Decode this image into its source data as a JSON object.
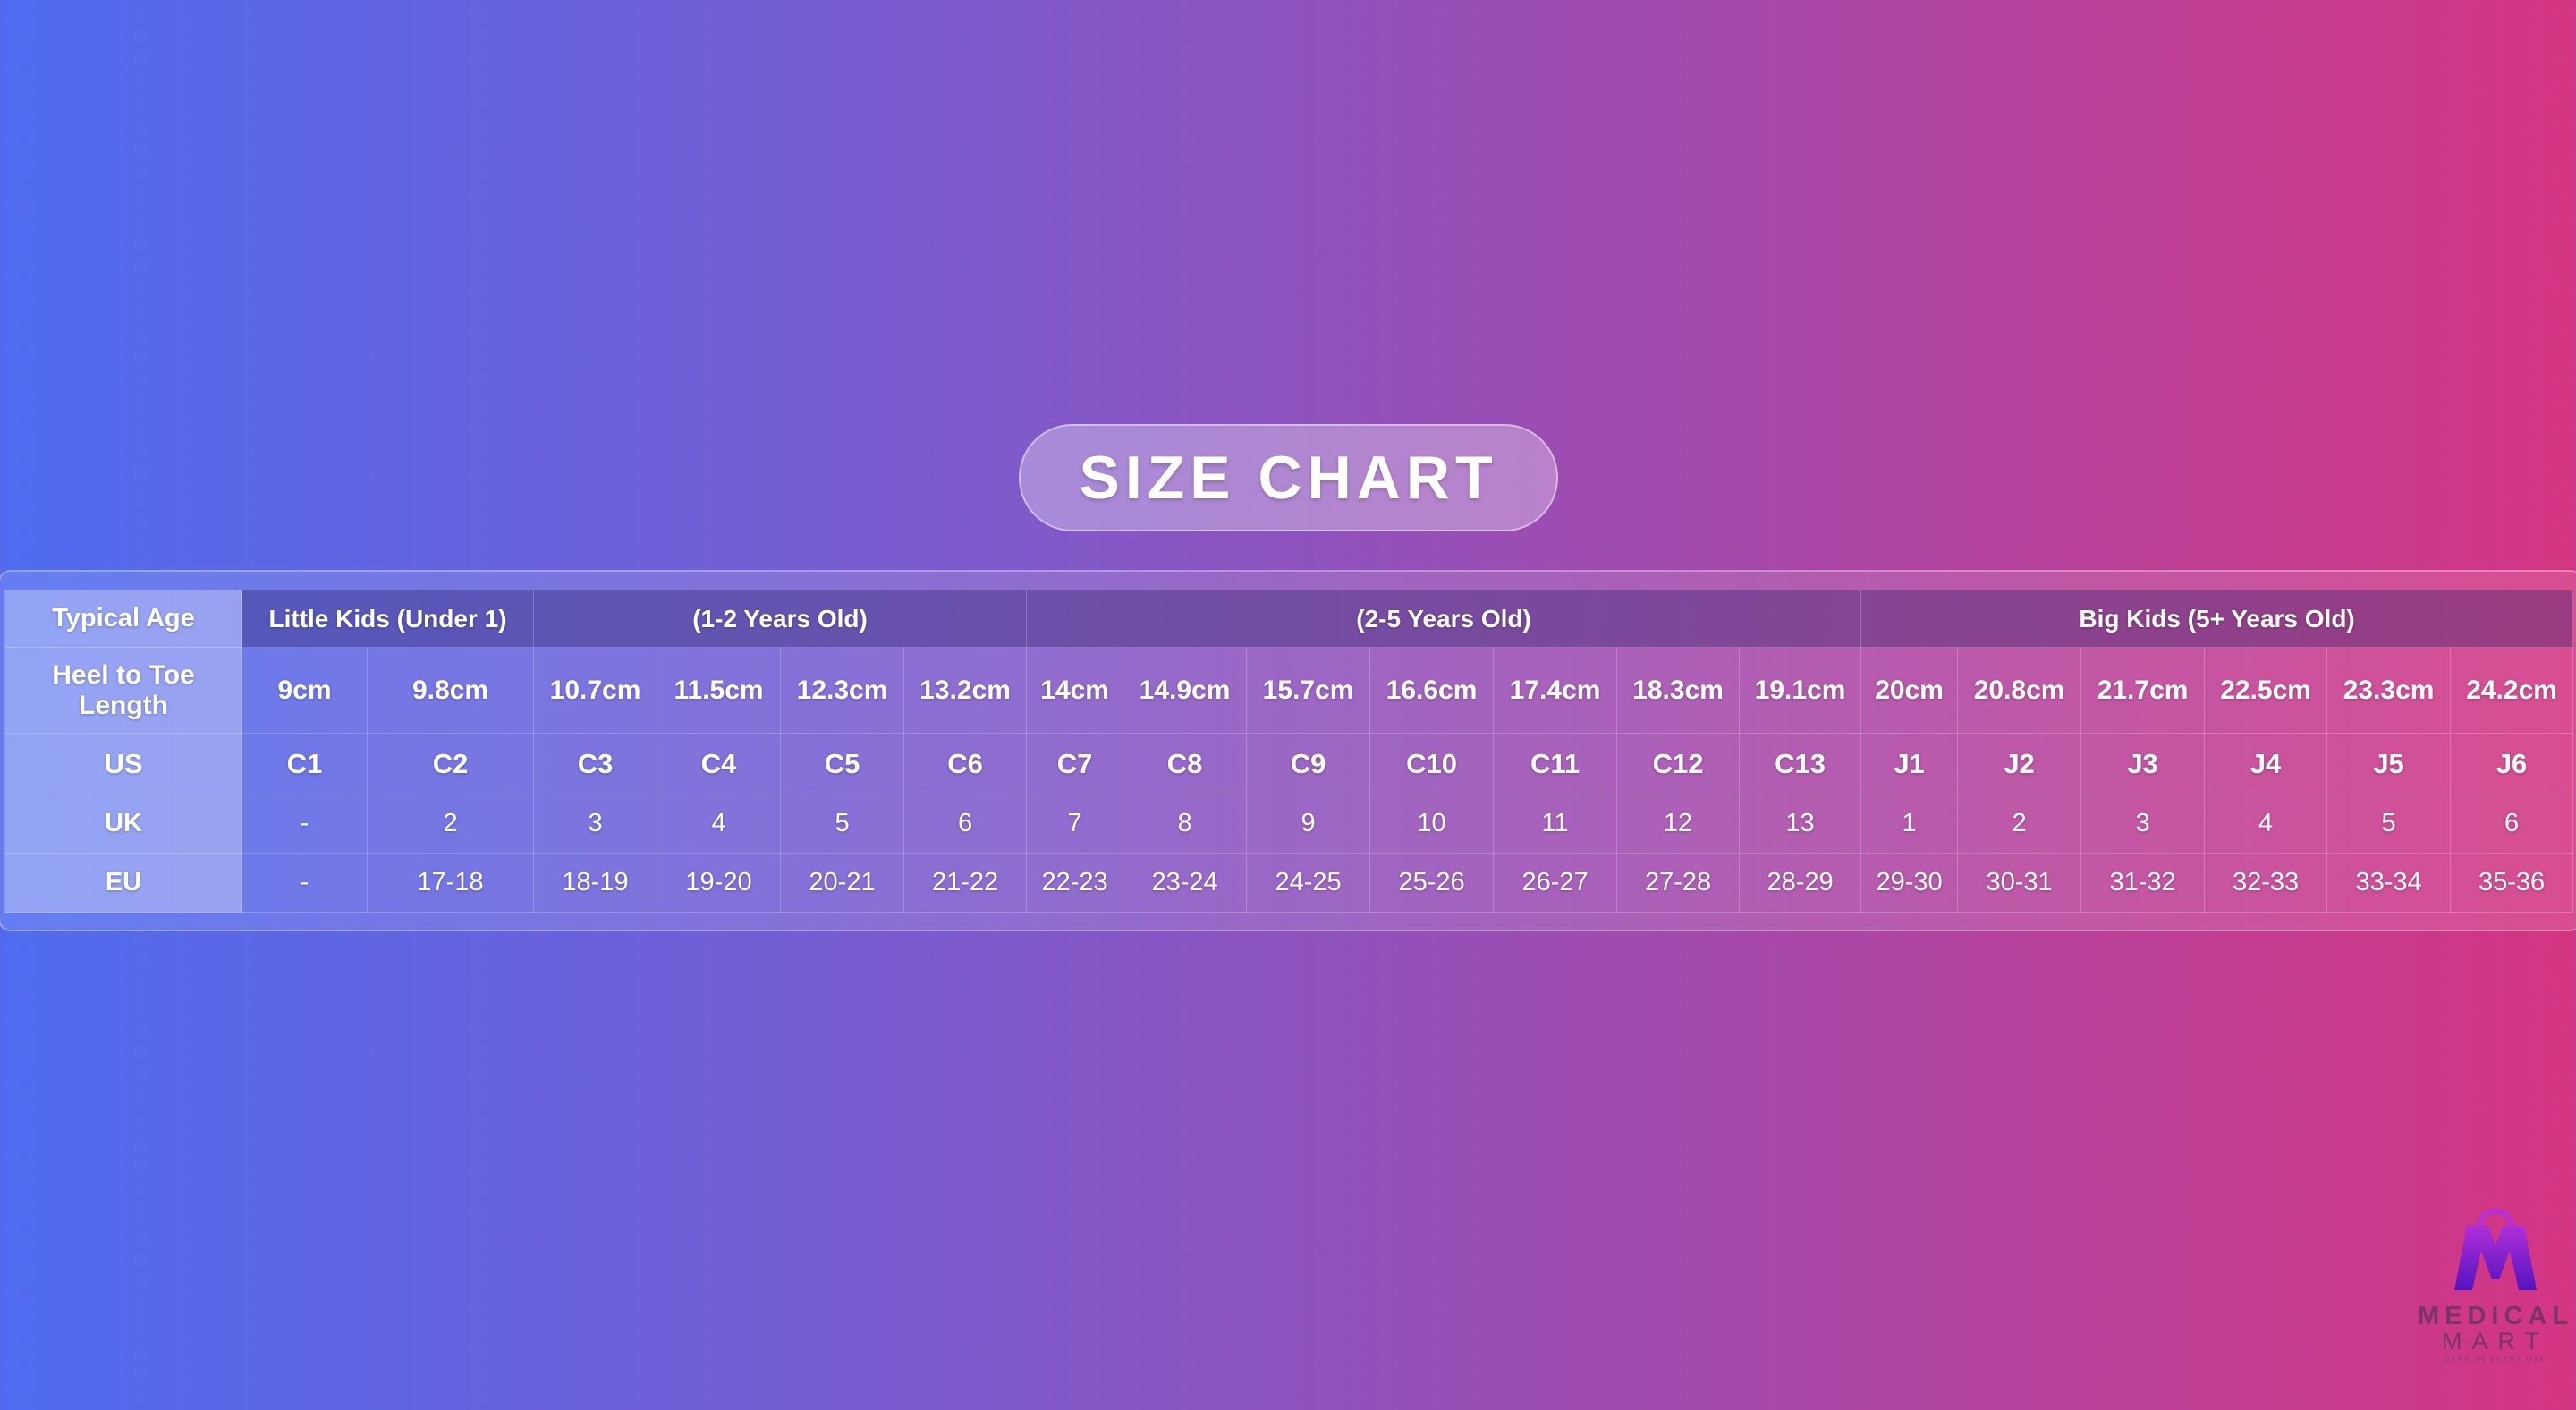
{
  "title": "SIZE CHART",
  "table": {
    "row_labels": {
      "age": "Typical Age",
      "length": "Heel to Toe Length",
      "us": "US",
      "uk": "UK",
      "eu": "EU"
    },
    "groups": [
      "Little Kids (Under 1)",
      "(1-2 Years Old)",
      "(2-5 Years Old)",
      "Big Kids (5+ Years Old)"
    ],
    "length": [
      "9cm",
      "9.8cm",
      "10.7cm",
      "11.5cm",
      "12.3cm",
      "13.2cm",
      "14cm",
      "14.9cm",
      "15.7cm",
      "16.6cm",
      "17.4cm",
      "18.3cm",
      "19.1cm",
      "20cm",
      "20.8cm",
      "21.7cm",
      "22.5cm",
      "23.3cm",
      "24.2cm"
    ],
    "us": [
      "C1",
      "C2",
      "C3",
      "C4",
      "C5",
      "C6",
      "C7",
      "C8",
      "C9",
      "C10",
      "C11",
      "C12",
      "C13",
      "J1",
      "J2",
      "J3",
      "J4",
      "J5",
      "J6"
    ],
    "uk": [
      "-",
      "2",
      "3",
      "4",
      "5",
      "6",
      "7",
      "8",
      "9",
      "10",
      "11",
      "12",
      "13",
      "1",
      "2",
      "3",
      "4",
      "5",
      "6"
    ],
    "eu": [
      "-",
      "17-18",
      "18-19",
      "19-20",
      "20-21",
      "21-22",
      "22-23",
      "23-24",
      "24-25",
      "25-26",
      "26-27",
      "27-28",
      "28-29",
      "29-30",
      "30-31",
      "31-32",
      "32-33",
      "33-34",
      "35-36"
    ]
  },
  "logo": {
    "line1": "MEDICAL",
    "line2": "MART",
    "tagline": "CARE IN EVERY USE"
  }
}
